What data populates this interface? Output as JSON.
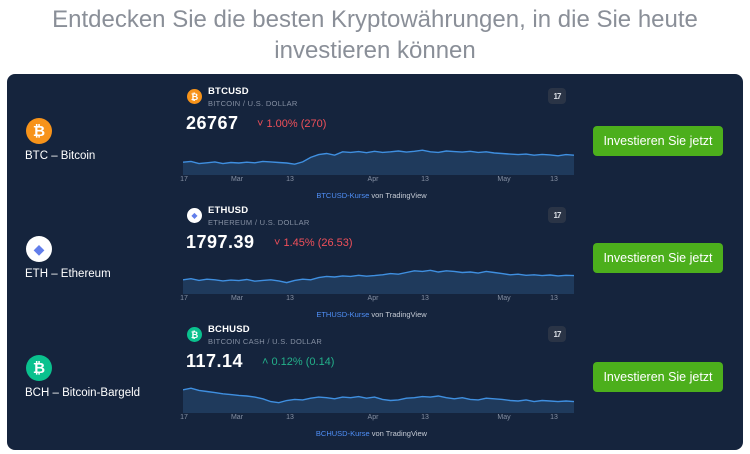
{
  "headline": "Entdecken Sie die besten Kryptowährungen, in die Sie heute investieren können",
  "rows": [
    {
      "coin_name": "BTC – Bitcoin",
      "logo_glyph": "₿",
      "logo_color": "#f7931a",
      "symbol": "BTCUSD",
      "symbol_desc": "BITCOIN / U.S. DOLLAR",
      "price": "26767",
      "change": "˅ 1.00% (270)",
      "direction": "down",
      "attribution_link": "BTCUSD-Kurse",
      "attribution_text": " von TradingView",
      "tv_logo": "17",
      "button": "Investieren Sie jetzt",
      "ticks": [
        "17",
        "Mar",
        "13",
        "Apr",
        "13",
        "May",
        "13"
      ],
      "series": [
        0.35,
        0.38,
        0.3,
        0.33,
        0.36,
        0.3,
        0.34,
        0.32,
        0.35,
        0.33,
        0.38,
        0.36,
        0.34,
        0.32,
        0.28,
        0.36,
        0.52,
        0.62,
        0.66,
        0.6,
        0.72,
        0.7,
        0.73,
        0.69,
        0.74,
        0.7,
        0.72,
        0.75,
        0.71,
        0.74,
        0.78,
        0.72,
        0.7,
        0.75,
        0.73,
        0.71,
        0.74,
        0.7,
        0.72,
        0.68,
        0.66,
        0.64,
        0.62,
        0.64,
        0.6,
        0.63,
        0.61,
        0.58,
        0.62,
        0.6
      ]
    },
    {
      "coin_name": "ETH – Ethereum",
      "logo_glyph": "◆",
      "logo_color": "#ffffff",
      "symbol": "ETHUSD",
      "symbol_desc": "ETHEREUM / U.S. DOLLAR",
      "price": "1797.39",
      "change": "˅ 1.45% (26.53)",
      "direction": "down",
      "attribution_link": "ETHUSD-Kurse",
      "attribution_text": " von TradingView",
      "tv_logo": "17",
      "button": "Investieren Sie jetzt",
      "ticks": [
        "17",
        "Mar",
        "13",
        "Apr",
        "13",
        "May",
        "13"
      ],
      "series": [
        0.4,
        0.44,
        0.38,
        0.42,
        0.4,
        0.36,
        0.39,
        0.37,
        0.41,
        0.35,
        0.38,
        0.4,
        0.36,
        0.3,
        0.38,
        0.42,
        0.4,
        0.48,
        0.52,
        0.5,
        0.54,
        0.52,
        0.56,
        0.53,
        0.55,
        0.58,
        0.62,
        0.6,
        0.66,
        0.72,
        0.7,
        0.74,
        0.68,
        0.72,
        0.7,
        0.66,
        0.68,
        0.64,
        0.7,
        0.66,
        0.62,
        0.58,
        0.6,
        0.56,
        0.58,
        0.55,
        0.57,
        0.54,
        0.56,
        0.55
      ]
    },
    {
      "coin_name": "BCH – Bitcoin-Bargeld",
      "logo_glyph": "₿",
      "logo_color": "#0ac18e",
      "symbol": "BCHUSD",
      "symbol_desc": "BITCOIN CASH / U.S. DOLLAR",
      "price": "117.14",
      "change": "˄ 0.12% (0.14)",
      "direction": "up",
      "attribution_link": "BCHUSD-Kurse",
      "attribution_text": " von TradingView",
      "tv_logo": "17",
      "button": "Investieren Sie jetzt",
      "ticks": [
        "17",
        "Mar",
        "13",
        "Apr",
        "13",
        "May",
        "13"
      ],
      "series": [
        0.72,
        0.78,
        0.7,
        0.66,
        0.62,
        0.58,
        0.55,
        0.52,
        0.5,
        0.46,
        0.4,
        0.3,
        0.26,
        0.34,
        0.38,
        0.36,
        0.42,
        0.46,
        0.44,
        0.4,
        0.46,
        0.44,
        0.48,
        0.42,
        0.46,
        0.38,
        0.34,
        0.36,
        0.42,
        0.44,
        0.48,
        0.46,
        0.5,
        0.44,
        0.4,
        0.44,
        0.38,
        0.36,
        0.42,
        0.4,
        0.38,
        0.34,
        0.32,
        0.36,
        0.3,
        0.34,
        0.32,
        0.3,
        0.32,
        0.3
      ]
    }
  ]
}
